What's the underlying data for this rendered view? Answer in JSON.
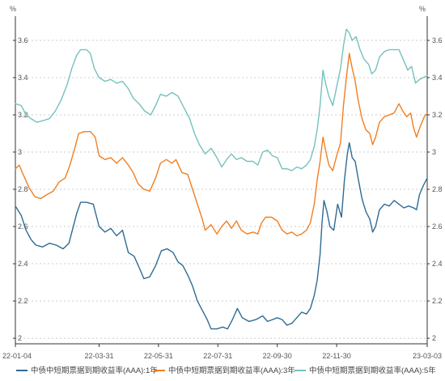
{
  "chart_data": {
    "type": "line",
    "title": "",
    "unit_left": "%",
    "unit_right": "%",
    "ylim": [
      1.97,
      3.73
    ],
    "yticks": [
      2,
      2.2,
      2.4,
      2.6,
      2.8,
      3,
      3.2,
      3.4,
      3.6
    ],
    "ytick_labels": [
      "2",
      "2.2",
      "2.4",
      "2.6",
      "2.8",
      "3",
      "3.2",
      "3.4",
      "3.6"
    ],
    "x_start": "22-01-04",
    "x_end": "23-03-03",
    "xtick_labels": [
      "22-01-04",
      "22-03-31",
      "22-05-31",
      "22-07-31",
      "22-09-30",
      "22-11-30",
      "23-03-03"
    ],
    "grid": true,
    "legend_position": "bottom",
    "series": [
      {
        "name": "中债中短期票据到期收益率(AAA):1年",
        "color": "#2e6b93",
        "points": [
          [
            "22-01-04",
            2.71
          ],
          [
            "22-01-10",
            2.66
          ],
          [
            "22-01-15",
            2.58
          ],
          [
            "22-01-20",
            2.53
          ],
          [
            "22-01-25",
            2.5
          ],
          [
            "22-02-01",
            2.49
          ],
          [
            "22-02-08",
            2.51
          ],
          [
            "22-02-15",
            2.5
          ],
          [
            "22-02-22",
            2.48
          ],
          [
            "22-02-28",
            2.51
          ],
          [
            "22-03-03",
            2.57
          ],
          [
            "22-03-08",
            2.67
          ],
          [
            "22-03-12",
            2.73
          ],
          [
            "22-03-18",
            2.73
          ],
          [
            "22-03-25",
            2.72
          ],
          [
            "22-03-31",
            2.6
          ],
          [
            "22-04-06",
            2.57
          ],
          [
            "22-04-12",
            2.59
          ],
          [
            "22-04-18",
            2.55
          ],
          [
            "22-04-24",
            2.58
          ],
          [
            "22-04-30",
            2.46
          ],
          [
            "22-05-06",
            2.44
          ],
          [
            "22-05-12",
            2.37
          ],
          [
            "22-05-16",
            2.32
          ],
          [
            "22-05-22",
            2.33
          ],
          [
            "22-05-28",
            2.39
          ],
          [
            "22-06-03",
            2.47
          ],
          [
            "22-06-09",
            2.48
          ],
          [
            "22-06-15",
            2.46
          ],
          [
            "22-06-20",
            2.41
          ],
          [
            "22-06-25",
            2.39
          ],
          [
            "22-06-30",
            2.34
          ],
          [
            "22-07-05",
            2.28
          ],
          [
            "22-07-10",
            2.2
          ],
          [
            "22-07-15",
            2.15
          ],
          [
            "22-07-20",
            2.1
          ],
          [
            "22-07-24",
            2.05
          ],
          [
            "22-07-30",
            2.05
          ],
          [
            "22-08-05",
            2.06
          ],
          [
            "22-08-10",
            2.05
          ],
          [
            "22-08-15",
            2.1
          ],
          [
            "22-08-20",
            2.16
          ],
          [
            "22-08-25",
            2.11
          ],
          [
            "22-09-01",
            2.09
          ],
          [
            "22-09-08",
            2.1
          ],
          [
            "22-09-15",
            2.12
          ],
          [
            "22-09-20",
            2.09
          ],
          [
            "22-09-25",
            2.1
          ],
          [
            "22-09-30",
            2.11
          ],
          [
            "22-10-05",
            2.1
          ],
          [
            "22-10-10",
            2.07
          ],
          [
            "22-10-15",
            2.08
          ],
          [
            "22-10-20",
            2.11
          ],
          [
            "22-10-25",
            2.14
          ],
          [
            "22-10-30",
            2.13
          ],
          [
            "22-11-03",
            2.16
          ],
          [
            "22-11-07",
            2.23
          ],
          [
            "22-11-10",
            2.31
          ],
          [
            "22-11-13",
            2.45
          ],
          [
            "22-11-15",
            2.62
          ],
          [
            "22-11-17",
            2.74
          ],
          [
            "22-11-20",
            2.68
          ],
          [
            "22-11-23",
            2.6
          ],
          [
            "22-11-27",
            2.58
          ],
          [
            "22-12-01",
            2.72
          ],
          [
            "22-12-05",
            2.65
          ],
          [
            "22-12-08",
            2.85
          ],
          [
            "22-12-11",
            2.99
          ],
          [
            "22-12-13",
            3.05
          ],
          [
            "22-12-16",
            2.97
          ],
          [
            "22-12-19",
            2.95
          ],
          [
            "22-12-22",
            2.86
          ],
          [
            "22-12-26",
            2.75
          ],
          [
            "22-12-30",
            2.68
          ],
          [
            "23-01-03",
            2.64
          ],
          [
            "23-01-06",
            2.57
          ],
          [
            "23-01-09",
            2.6
          ],
          [
            "23-01-13",
            2.69
          ],
          [
            "23-01-18",
            2.72
          ],
          [
            "23-01-23",
            2.71
          ],
          [
            "23-01-28",
            2.74
          ],
          [
            "23-02-02",
            2.72
          ],
          [
            "23-02-07",
            2.7
          ],
          [
            "23-02-12",
            2.71
          ],
          [
            "23-02-17",
            2.7
          ],
          [
            "23-02-20",
            2.69
          ],
          [
            "23-02-23",
            2.77
          ],
          [
            "23-02-27",
            2.82
          ],
          [
            "23-03-03",
            2.86
          ]
        ]
      },
      {
        "name": "中债中短期票据到期收益率(AAA):3年",
        "color": "#f07f22",
        "points": [
          [
            "22-01-04",
            2.91
          ],
          [
            "22-01-08",
            2.93
          ],
          [
            "22-01-12",
            2.88
          ],
          [
            "22-01-18",
            2.81
          ],
          [
            "22-01-24",
            2.76
          ],
          [
            "22-01-30",
            2.75
          ],
          [
            "22-02-05",
            2.77
          ],
          [
            "22-02-12",
            2.79
          ],
          [
            "22-02-18",
            2.84
          ],
          [
            "22-02-24",
            2.86
          ],
          [
            "22-03-01",
            2.93
          ],
          [
            "22-03-06",
            3.02
          ],
          [
            "22-03-10",
            3.1
          ],
          [
            "22-03-16",
            3.11
          ],
          [
            "22-03-22",
            3.11
          ],
          [
            "22-03-27",
            3.08
          ],
          [
            "22-03-31",
            2.98
          ],
          [
            "22-04-06",
            2.96
          ],
          [
            "22-04-12",
            2.97
          ],
          [
            "22-04-18",
            2.94
          ],
          [
            "22-04-24",
            2.97
          ],
          [
            "22-04-30",
            2.93
          ],
          [
            "22-05-05",
            2.89
          ],
          [
            "22-05-10",
            2.83
          ],
          [
            "22-05-16",
            2.8
          ],
          [
            "22-05-22",
            2.79
          ],
          [
            "22-05-28",
            2.86
          ],
          [
            "22-06-02",
            2.94
          ],
          [
            "22-06-08",
            2.96
          ],
          [
            "22-06-14",
            2.94
          ],
          [
            "22-06-18",
            2.96
          ],
          [
            "22-06-24",
            2.89
          ],
          [
            "22-06-30",
            2.88
          ],
          [
            "22-07-05",
            2.8
          ],
          [
            "22-07-10",
            2.72
          ],
          [
            "22-07-15",
            2.64
          ],
          [
            "22-07-18",
            2.58
          ],
          [
            "22-07-24",
            2.61
          ],
          [
            "22-07-30",
            2.56
          ],
          [
            "22-08-04",
            2.6
          ],
          [
            "22-08-09",
            2.63
          ],
          [
            "22-08-14",
            2.59
          ],
          [
            "22-08-19",
            2.63
          ],
          [
            "22-08-24",
            2.58
          ],
          [
            "22-08-30",
            2.56
          ],
          [
            "22-09-05",
            2.57
          ],
          [
            "22-09-10",
            2.56
          ],
          [
            "22-09-14",
            2.62
          ],
          [
            "22-09-18",
            2.65
          ],
          [
            "22-09-24",
            2.65
          ],
          [
            "22-09-30",
            2.63
          ],
          [
            "22-10-05",
            2.58
          ],
          [
            "22-10-10",
            2.56
          ],
          [
            "22-10-15",
            2.57
          ],
          [
            "22-10-20",
            2.55
          ],
          [
            "22-10-25",
            2.56
          ],
          [
            "22-10-30",
            2.58
          ],
          [
            "22-11-03",
            2.62
          ],
          [
            "22-11-07",
            2.72
          ],
          [
            "22-11-10",
            2.85
          ],
          [
            "22-11-13",
            2.95
          ],
          [
            "22-11-16",
            3.08
          ],
          [
            "22-11-19",
            3.0
          ],
          [
            "22-11-22",
            2.93
          ],
          [
            "22-11-26",
            2.9
          ],
          [
            "22-11-30",
            2.98
          ],
          [
            "22-12-04",
            3.05
          ],
          [
            "22-12-07",
            3.25
          ],
          [
            "22-12-10",
            3.4
          ],
          [
            "22-12-13",
            3.53
          ],
          [
            "22-12-16",
            3.45
          ],
          [
            "22-12-19",
            3.38
          ],
          [
            "22-12-22",
            3.28
          ],
          [
            "22-12-26",
            3.18
          ],
          [
            "22-12-30",
            3.12
          ],
          [
            "23-01-03",
            3.1
          ],
          [
            "23-01-06",
            3.04
          ],
          [
            "23-01-09",
            3.08
          ],
          [
            "23-01-13",
            3.16
          ],
          [
            "23-01-18",
            3.19
          ],
          [
            "23-01-23",
            3.2
          ],
          [
            "23-01-28",
            3.21
          ],
          [
            "23-02-02",
            3.26
          ],
          [
            "23-02-06",
            3.22
          ],
          [
            "23-02-10",
            3.19
          ],
          [
            "23-02-14",
            3.21
          ],
          [
            "23-02-17",
            3.13
          ],
          [
            "23-02-20",
            3.08
          ],
          [
            "23-02-24",
            3.14
          ],
          [
            "23-02-28",
            3.19
          ],
          [
            "23-03-03",
            3.21
          ]
        ]
      },
      {
        "name": "中债中短期票据到期收益率(AAA):5年",
        "color": "#74c1bd",
        "points": [
          [
            "22-01-04",
            3.26
          ],
          [
            "22-01-10",
            3.25
          ],
          [
            "22-01-15",
            3.2
          ],
          [
            "22-01-20",
            3.18
          ],
          [
            "22-01-26",
            3.16
          ],
          [
            "22-02-02",
            3.17
          ],
          [
            "22-02-08",
            3.18
          ],
          [
            "22-02-14",
            3.22
          ],
          [
            "22-02-20",
            3.28
          ],
          [
            "22-02-26",
            3.36
          ],
          [
            "22-03-03",
            3.45
          ],
          [
            "22-03-08",
            3.52
          ],
          [
            "22-03-12",
            3.55
          ],
          [
            "22-03-18",
            3.55
          ],
          [
            "22-03-22",
            3.53
          ],
          [
            "22-03-26",
            3.45
          ],
          [
            "22-03-31",
            3.4
          ],
          [
            "22-04-06",
            3.38
          ],
          [
            "22-04-12",
            3.39
          ],
          [
            "22-04-18",
            3.37
          ],
          [
            "22-04-24",
            3.38
          ],
          [
            "22-04-30",
            3.34
          ],
          [
            "22-05-05",
            3.29
          ],
          [
            "22-05-11",
            3.26
          ],
          [
            "22-05-17",
            3.22
          ],
          [
            "22-05-23",
            3.2
          ],
          [
            "22-05-28",
            3.25
          ],
          [
            "22-06-02",
            3.31
          ],
          [
            "22-06-08",
            3.3
          ],
          [
            "22-06-14",
            3.32
          ],
          [
            "22-06-20",
            3.3
          ],
          [
            "22-06-26",
            3.24
          ],
          [
            "22-07-02",
            3.18
          ],
          [
            "22-07-07",
            3.1
          ],
          [
            "22-07-12",
            3.04
          ],
          [
            "22-07-18",
            2.99
          ],
          [
            "22-07-24",
            3.02
          ],
          [
            "22-07-30",
            2.97
          ],
          [
            "22-08-04",
            2.92
          ],
          [
            "22-08-09",
            2.96
          ],
          [
            "22-08-14",
            2.99
          ],
          [
            "22-08-19",
            2.96
          ],
          [
            "22-08-24",
            2.97
          ],
          [
            "22-08-30",
            2.95
          ],
          [
            "22-09-05",
            2.95
          ],
          [
            "22-09-10",
            2.93
          ],
          [
            "22-09-15",
            3.0
          ],
          [
            "22-09-20",
            3.01
          ],
          [
            "22-09-25",
            2.98
          ],
          [
            "22-09-30",
            2.97
          ],
          [
            "22-10-05",
            2.91
          ],
          [
            "22-10-10",
            2.91
          ],
          [
            "22-10-15",
            2.9
          ],
          [
            "22-10-20",
            2.92
          ],
          [
            "22-10-25",
            2.91
          ],
          [
            "22-10-30",
            2.93
          ],
          [
            "22-11-03",
            2.96
          ],
          [
            "22-11-07",
            3.03
          ],
          [
            "22-11-10",
            3.12
          ],
          [
            "22-11-13",
            3.25
          ],
          [
            "22-11-16",
            3.44
          ],
          [
            "22-11-19",
            3.36
          ],
          [
            "22-11-22",
            3.3
          ],
          [
            "22-11-26",
            3.25
          ],
          [
            "22-11-30",
            3.35
          ],
          [
            "22-12-04",
            3.45
          ],
          [
            "22-12-07",
            3.57
          ],
          [
            "22-12-10",
            3.66
          ],
          [
            "22-12-13",
            3.64
          ],
          [
            "22-12-16",
            3.6
          ],
          [
            "22-12-20",
            3.62
          ],
          [
            "22-12-24",
            3.55
          ],
          [
            "22-12-28",
            3.5
          ],
          [
            "23-01-02",
            3.47
          ],
          [
            "23-01-05",
            3.42
          ],
          [
            "23-01-09",
            3.44
          ],
          [
            "23-01-13",
            3.51
          ],
          [
            "23-01-18",
            3.54
          ],
          [
            "23-01-23",
            3.55
          ],
          [
            "23-01-28",
            3.55
          ],
          [
            "23-02-02",
            3.55
          ],
          [
            "23-02-07",
            3.49
          ],
          [
            "23-02-11",
            3.44
          ],
          [
            "23-02-15",
            3.46
          ],
          [
            "23-02-19",
            3.37
          ],
          [
            "23-02-23",
            3.39
          ],
          [
            "23-02-27",
            3.4
          ],
          [
            "23-03-03",
            3.41
          ]
        ]
      }
    ]
  }
}
